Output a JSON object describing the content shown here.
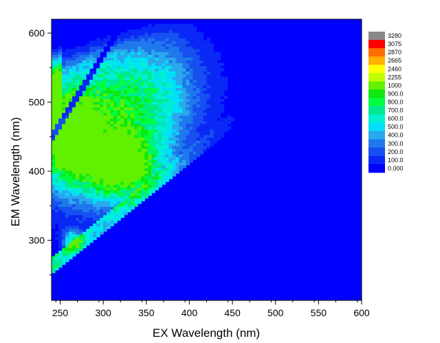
{
  "chart_data": {
    "type": "heatmap",
    "subtype": "excitation-emission contour map",
    "xlabel": "EX Wavelength (nm)",
    "ylabel": "EM Wavelength (nm)",
    "xlim": [
      240,
      600
    ],
    "ylim": [
      213,
      620
    ],
    "x_ticks": [
      250,
      300,
      350,
      400,
      450,
      500,
      550,
      600
    ],
    "y_ticks": [
      300,
      400,
      500,
      600
    ],
    "colorbar": {
      "position": "right",
      "levels": [
        "0.000",
        "100.0",
        "200.0",
        "300.0",
        "400.0",
        "500.0",
        "600.0",
        "700.0",
        "800.0",
        "900.0",
        "1000",
        "2255",
        "2460",
        "2665",
        "2870",
        "3075",
        "3280"
      ],
      "colors": [
        "#0000ff",
        "#0a28f5",
        "#1650f0",
        "#1f78ec",
        "#2aa8ec",
        "#00e0f8",
        "#00f0d0",
        "#00e890",
        "#00ff40",
        "#10e810",
        "#60f000",
        "#c0ff00",
        "#ffff00",
        "#ffb000",
        "#ff7000",
        "#ff0000",
        "#888888"
      ]
    },
    "data_region": "intensity > 0 for EM > EX + 10 nm; EM-limited above ~620 nm",
    "peaks": [
      {
        "ex": 255,
        "em": 440,
        "level": "900.0"
      },
      {
        "ex": 320,
        "em": 405,
        "level": "900.0"
      },
      {
        "ex": 265,
        "em": 300,
        "level": "1000"
      },
      {
        "ex": 245,
        "em": 560,
        "level": "1000"
      }
    ],
    "rayleigh_scatter_line": "EM ≈ EX (first order, high intensity band near diagonal)",
    "second_order_scatter_line": "EM ≈ 2 × EX (low-intensity notch, upper-left)"
  }
}
